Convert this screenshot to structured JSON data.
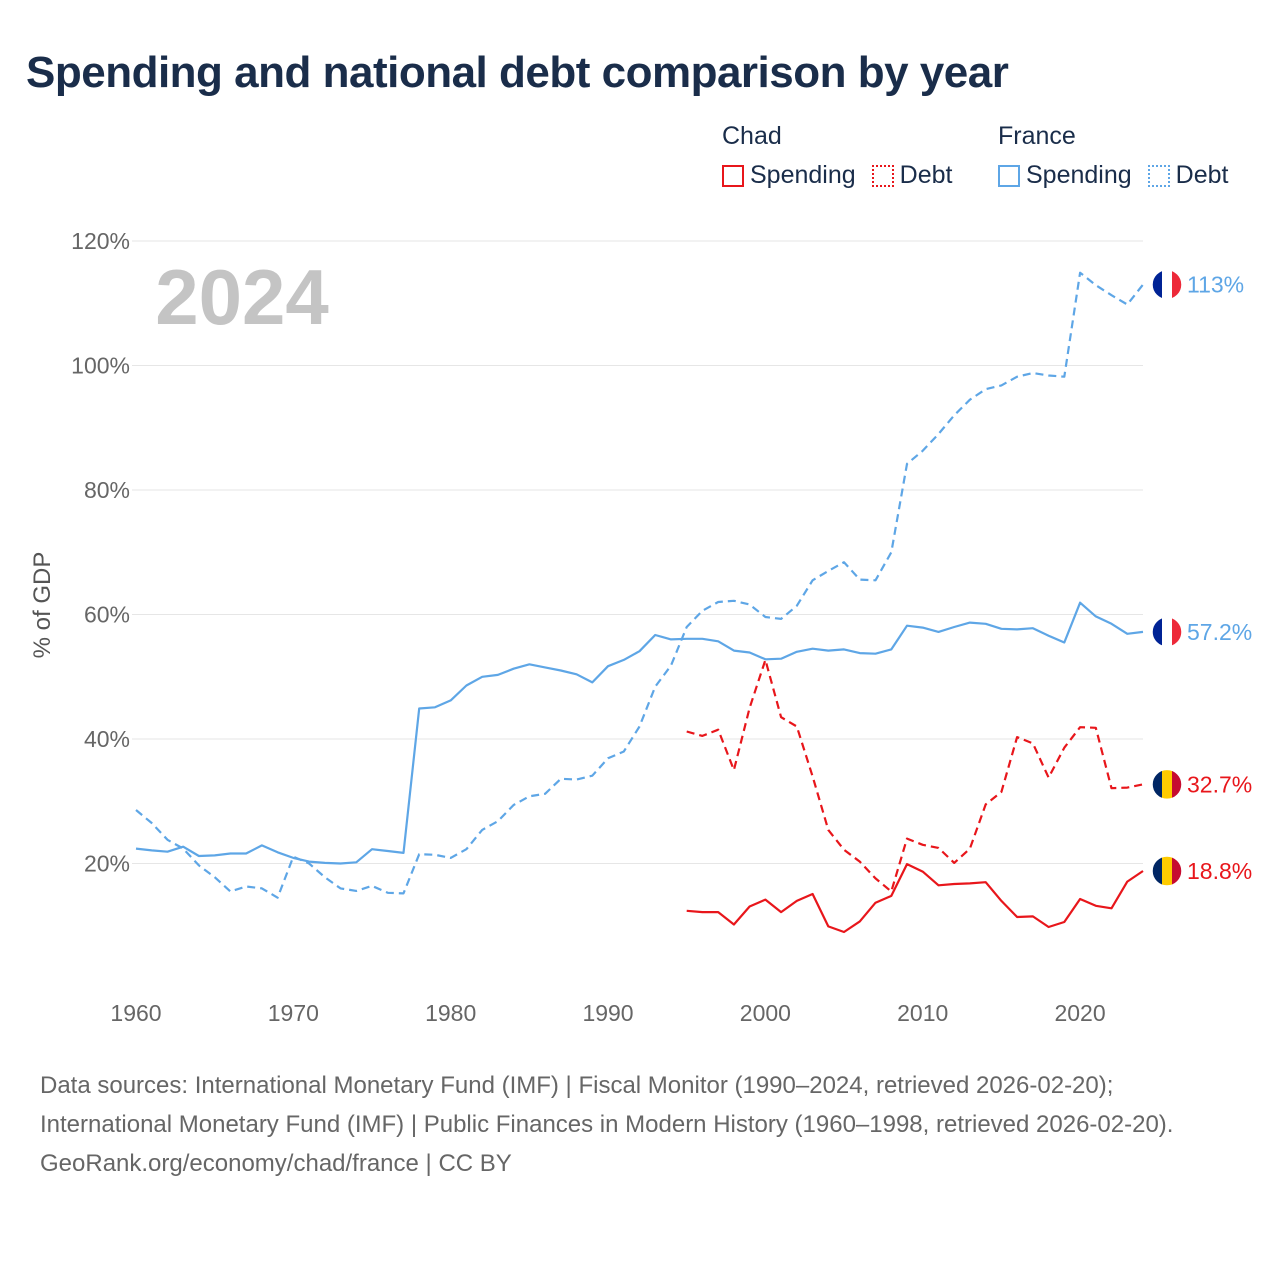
{
  "title": "Spending and national debt comparison by year",
  "legend": {
    "groups": [
      {
        "name": "Chad",
        "items": [
          {
            "label": "Spending",
            "style": "solid",
            "color": "#e8161b"
          },
          {
            "label": "Debt",
            "style": "dotted",
            "color": "#e8161b"
          }
        ]
      },
      {
        "name": "France",
        "items": [
          {
            "label": "Spending",
            "style": "solid",
            "color": "#5ea6e6"
          },
          {
            "label": "Debt",
            "style": "dotted",
            "color": "#5ea6e6"
          }
        ]
      }
    ]
  },
  "chart_data": {
    "type": "line",
    "ylabel": "% of GDP",
    "xlim": [
      1960,
      2024
    ],
    "ylim": [
      0,
      120
    ],
    "yticks": [
      20,
      40,
      60,
      80,
      100,
      120
    ],
    "ytick_labels": [
      "20%",
      "40%",
      "60%",
      "80%",
      "100%",
      "120%"
    ],
    "xticks": [
      1960,
      1970,
      1980,
      1990,
      2000,
      2010,
      2020
    ],
    "xtick_labels": [
      "1960",
      "1970",
      "1980",
      "1990",
      "2000",
      "2010",
      "2020"
    ],
    "year_label": "2024",
    "grid": true,
    "series": [
      {
        "name": "France Debt",
        "country": "France",
        "measure": "Debt",
        "color": "#5ea6e6",
        "dashed": true,
        "end_label": "113%",
        "years": [
          1960,
          1961,
          1962,
          1963,
          1964,
          1965,
          1966,
          1967,
          1968,
          1969,
          1970,
          1971,
          1972,
          1973,
          1974,
          1975,
          1976,
          1977,
          1978,
          1979,
          1980,
          1981,
          1982,
          1983,
          1984,
          1985,
          1986,
          1987,
          1988,
          1989,
          1990,
          1991,
          1992,
          1993,
          1994,
          1995,
          1996,
          1997,
          1998,
          1999,
          2000,
          2001,
          2002,
          2003,
          2004,
          2005,
          2006,
          2007,
          2008,
          2009,
          2010,
          2011,
          2012,
          2013,
          2014,
          2015,
          2016,
          2017,
          2018,
          2019,
          2020,
          2021,
          2022,
          2023,
          2024
        ],
        "values": [
          28.6,
          26.5,
          23.8,
          22.4,
          19.7,
          17.8,
          15.5,
          16.3,
          16.0,
          14.5,
          21.1,
          20.0,
          17.8,
          16.0,
          15.6,
          16.4,
          15.3,
          15.2,
          21.5,
          21.4,
          20.9,
          22.3,
          25.4,
          26.8,
          29.4,
          30.8,
          31.2,
          33.6,
          33.5,
          34.1,
          36.9,
          38.0,
          42.0,
          48.4,
          51.8,
          58.0,
          60.6,
          62.0,
          62.2,
          61.6,
          59.6,
          59.3,
          61.4,
          65.5,
          67.0,
          68.4,
          65.6,
          65.5,
          70.0,
          84.2,
          86.3,
          89.0,
          92.0,
          94.5,
          96.2,
          96.8,
          98.2,
          98.8,
          98.4,
          98.2,
          114.9,
          112.9,
          111.3,
          109.8,
          113.0
        ]
      },
      {
        "name": "France Spending",
        "country": "France",
        "measure": "Spending",
        "color": "#5ea6e6",
        "dashed": false,
        "end_label": "57.2%",
        "years": [
          1960,
          1961,
          1962,
          1963,
          1964,
          1965,
          1966,
          1967,
          1968,
          1969,
          1970,
          1971,
          1972,
          1973,
          1974,
          1975,
          1976,
          1977,
          1978,
          1979,
          1980,
          1981,
          1982,
          1983,
          1984,
          1985,
          1986,
          1987,
          1988,
          1989,
          1990,
          1991,
          1992,
          1993,
          1994,
          1995,
          1996,
          1997,
          1998,
          1999,
          2000,
          2001,
          2002,
          2003,
          2004,
          2005,
          2006,
          2007,
          2008,
          2009,
          2010,
          2011,
          2012,
          2013,
          2014,
          2015,
          2016,
          2017,
          2018,
          2019,
          2020,
          2021,
          2022,
          2023,
          2024
        ],
        "values": [
          22.4,
          22.1,
          21.9,
          22.7,
          21.2,
          21.3,
          21.6,
          21.6,
          22.9,
          21.8,
          20.9,
          20.3,
          20.1,
          20.0,
          20.2,
          22.3,
          22.0,
          21.7,
          44.9,
          45.1,
          46.2,
          48.6,
          50.0,
          50.3,
          51.3,
          52.0,
          51.5,
          51.0,
          50.4,
          49.1,
          51.7,
          52.7,
          54.1,
          56.7,
          56.0,
          56.1,
          56.1,
          55.7,
          54.2,
          53.9,
          52.8,
          52.9,
          54.0,
          54.5,
          54.2,
          54.4,
          53.8,
          53.7,
          54.4,
          58.2,
          57.9,
          57.2,
          58.0,
          58.7,
          58.5,
          57.7,
          57.6,
          57.8,
          56.6,
          55.5,
          61.9,
          59.7,
          58.5,
          56.9,
          57.2
        ]
      },
      {
        "name": "Chad Debt",
        "country": "Chad",
        "measure": "Debt",
        "color": "#e8161b",
        "dashed": true,
        "end_label": "32.7%",
        "years": [
          1995,
          1996,
          1997,
          1998,
          1999,
          2000,
          2001,
          2002,
          2003,
          2004,
          2005,
          2006,
          2007,
          2008,
          2009,
          2010,
          2011,
          2012,
          2013,
          2014,
          2015,
          2016,
          2017,
          2018,
          2019,
          2020,
          2021,
          2022,
          2023,
          2024
        ],
        "values": [
          41.2,
          40.5,
          41.5,
          35.0,
          45.0,
          52.7,
          43.5,
          42.0,
          34.0,
          25.4,
          22.2,
          20.3,
          17.6,
          15.5,
          24.0,
          23.0,
          22.5,
          20.1,
          22.4,
          29.5,
          31.5,
          40.3,
          39.3,
          33.8,
          38.6,
          41.9,
          41.8,
          32.1,
          32.2,
          32.7
        ]
      },
      {
        "name": "Chad Spending",
        "country": "Chad",
        "measure": "Spending",
        "color": "#e8161b",
        "dashed": false,
        "end_label": "18.8%",
        "years": [
          1995,
          1996,
          1997,
          1998,
          1999,
          2000,
          2001,
          2002,
          2003,
          2004,
          2005,
          2006,
          2007,
          2008,
          2009,
          2010,
          2011,
          2012,
          2013,
          2014,
          2015,
          2016,
          2017,
          2018,
          2019,
          2020,
          2021,
          2022,
          2023,
          2024
        ],
        "values": [
          12.4,
          12.2,
          12.2,
          10.2,
          13.1,
          14.2,
          12.2,
          14.0,
          15.1,
          9.9,
          9.0,
          10.7,
          13.7,
          14.8,
          19.9,
          18.7,
          16.5,
          16.7,
          16.8,
          17.0,
          14.0,
          11.4,
          11.5,
          9.8,
          10.6,
          14.3,
          13.2,
          12.8,
          17.1,
          18.8
        ]
      }
    ]
  },
  "footer": {
    "sources": "Data sources: International Monetary Fund (IMF) | Fiscal Monitor (1990–2024, retrieved 2026-02-20); International Monetary Fund (IMF) | Public Finances in Modern History (1960–1998, retrieved 2026-02-20).",
    "credit": "GeoRank.org/economy/chad/france | CC BY"
  }
}
